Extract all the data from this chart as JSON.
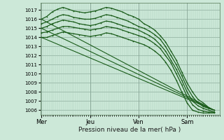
{
  "xlabel": "Pression niveau de la mer( hPa )",
  "background_color": "#cce8d8",
  "grid_color": "#aaccbb",
  "line_color": "#1a5c1a",
  "ylim": [
    1005.5,
    1017.8
  ],
  "yticks": [
    1006,
    1007,
    1008,
    1009,
    1010,
    1011,
    1012,
    1013,
    1014,
    1015,
    1016,
    1017
  ],
  "day_labels": [
    "Mer",
    "Jeu",
    "Ven",
    "Sam"
  ],
  "day_positions": [
    0,
    90,
    180,
    270
  ],
  "xlim": [
    -2,
    330
  ],
  "lines": [
    {
      "x": [
        0,
        10,
        20,
        30,
        40,
        50,
        60,
        70,
        80,
        90,
        100,
        110,
        120,
        130,
        140,
        150,
        160,
        170,
        180,
        190,
        200,
        210,
        220,
        230,
        240,
        250,
        260,
        270,
        280,
        290,
        300,
        310,
        320
      ],
      "y": [
        1016.0,
        1016.3,
        1016.8,
        1017.1,
        1017.3,
        1017.1,
        1016.9,
        1016.8,
        1016.7,
        1016.8,
        1016.9,
        1017.1,
        1017.3,
        1017.2,
        1017.0,
        1016.8,
        1016.5,
        1016.3,
        1016.0,
        1015.5,
        1015.2,
        1014.8,
        1014.2,
        1013.5,
        1012.5,
        1011.5,
        1010.2,
        1009.0,
        1008.0,
        1007.2,
        1006.8,
        1006.3,
        1006.0
      ],
      "marker": "+",
      "lw": 0.9
    },
    {
      "x": [
        0,
        10,
        20,
        30,
        40,
        50,
        60,
        70,
        80,
        90,
        100,
        110,
        120,
        130,
        140,
        150,
        160,
        170,
        180,
        190,
        200,
        210,
        220,
        230,
        240,
        250,
        260,
        270,
        280,
        290,
        300,
        310,
        320
      ],
      "y": [
        1015.5,
        1015.7,
        1016.0,
        1016.3,
        1016.5,
        1016.4,
        1016.2,
        1016.1,
        1016.0,
        1016.0,
        1016.1,
        1016.3,
        1016.5,
        1016.4,
        1016.2,
        1016.0,
        1015.8,
        1015.5,
        1015.2,
        1015.0,
        1014.7,
        1014.3,
        1013.8,
        1013.0,
        1012.0,
        1011.0,
        1009.8,
        1008.5,
        1007.5,
        1006.8,
        1006.4,
        1006.2,
        1006.0
      ],
      "marker": "+",
      "lw": 0.9
    },
    {
      "x": [
        0,
        10,
        20,
        30,
        40,
        50,
        60,
        70,
        80,
        90,
        100,
        110,
        120,
        130,
        140,
        150,
        160,
        170,
        180,
        190,
        200,
        210,
        220,
        230,
        240,
        250,
        260,
        270,
        280,
        290,
        300,
        310,
        320
      ],
      "y": [
        1015.0,
        1015.2,
        1015.5,
        1015.7,
        1015.9,
        1015.8,
        1015.7,
        1015.5,
        1015.4,
        1015.3,
        1015.4,
        1015.6,
        1015.8,
        1015.7,
        1015.5,
        1015.3,
        1015.1,
        1015.0,
        1014.8,
        1014.5,
        1014.2,
        1013.8,
        1013.2,
        1012.5,
        1011.5,
        1010.5,
        1009.3,
        1008.0,
        1007.0,
        1006.5,
        1006.2,
        1006.0,
        1005.8
      ],
      "marker": "+",
      "lw": 0.9
    },
    {
      "x": [
        0,
        10,
        20,
        30,
        40,
        50,
        60,
        70,
        80,
        90,
        100,
        110,
        120,
        130,
        140,
        150,
        160,
        170,
        180,
        190,
        200,
        210,
        220,
        230,
        240,
        250,
        260,
        270,
        280,
        290,
        300,
        310,
        320
      ],
      "y": [
        1014.5,
        1014.6,
        1014.8,
        1015.0,
        1015.2,
        1015.2,
        1015.1,
        1015.0,
        1014.9,
        1014.8,
        1014.9,
        1015.0,
        1015.2,
        1015.1,
        1015.0,
        1014.8,
        1014.6,
        1014.4,
        1014.2,
        1014.0,
        1013.7,
        1013.3,
        1012.8,
        1012.0,
        1011.2,
        1010.0,
        1008.8,
        1007.5,
        1006.6,
        1006.1,
        1005.9,
        1005.8,
        1005.8
      ],
      "marker": "+",
      "lw": 0.9
    },
    {
      "x": [
        0,
        10,
        20,
        30,
        40,
        50,
        60,
        70,
        80,
        90,
        100,
        110,
        120,
        130,
        140,
        150,
        160,
        170,
        180,
        190,
        200,
        210,
        220,
        230,
        240,
        250,
        260,
        270,
        280,
        290,
        300,
        310,
        320
      ],
      "y": [
        1014.0,
        1014.0,
        1014.2,
        1014.4,
        1014.6,
        1014.5,
        1014.4,
        1014.3,
        1014.2,
        1014.1,
        1014.2,
        1014.3,
        1014.5,
        1014.4,
        1014.2,
        1014.0,
        1013.8,
        1013.6,
        1013.4,
        1013.2,
        1012.9,
        1012.5,
        1012.0,
        1011.3,
        1010.4,
        1009.3,
        1008.0,
        1006.8,
        1006.0,
        1005.8,
        1005.7,
        1005.7,
        1005.7
      ],
      "marker": "+",
      "lw": 0.9
    },
    {
      "x": [
        0,
        320
      ],
      "y": [
        1016.0,
        1006.0
      ],
      "marker": null,
      "lw": 0.8
    },
    {
      "x": [
        0,
        320
      ],
      "y": [
        1015.0,
        1006.0
      ],
      "marker": null,
      "lw": 0.8
    },
    {
      "x": [
        0,
        320
      ],
      "y": [
        1014.0,
        1006.0
      ],
      "marker": null,
      "lw": 0.8
    }
  ]
}
